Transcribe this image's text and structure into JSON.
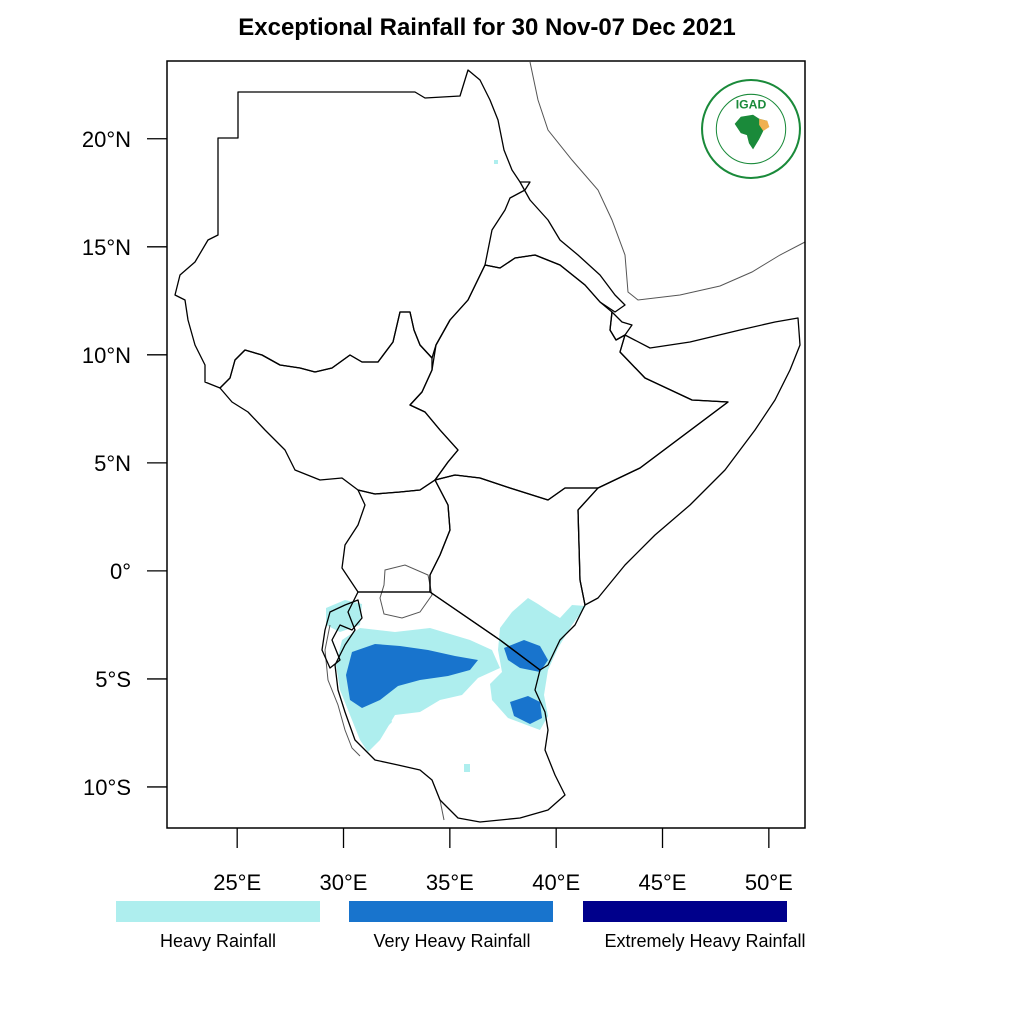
{
  "title": "Exceptional Rainfall for 30 Nov-07 Dec 2021",
  "axes": {
    "lat_ticks": [
      {
        "value": 20,
        "label": "20°N"
      },
      {
        "value": 15,
        "label": "15°N"
      },
      {
        "value": 10,
        "label": "10°N"
      },
      {
        "value": 5,
        "label": "5°N"
      },
      {
        "value": 0,
        "label": "0°"
      },
      {
        "value": -5,
        "label": "5°S"
      },
      {
        "value": -10,
        "label": "10°S"
      }
    ],
    "lon_ticks": [
      {
        "value": 25,
        "label": "25°E"
      },
      {
        "value": 30,
        "label": "30°E"
      },
      {
        "value": 35,
        "label": "35°E"
      },
      {
        "value": 40,
        "label": "40°E"
      },
      {
        "value": 45,
        "label": "45°E"
      },
      {
        "value": 50,
        "label": "50°E"
      }
    ],
    "lon_range": [
      21.7,
      51.7
    ],
    "lat_range": [
      -11.9,
      23.6
    ]
  },
  "legend": [
    {
      "label": "Heavy Rainfall",
      "color": "#aeeeee"
    },
    {
      "label": "Very Heavy Rainfall",
      "color": "#1874cd"
    },
    {
      "label": "Extremely Heavy Rainfall",
      "color": "#00008b"
    }
  ],
  "logo": {
    "text": "IGAD",
    "ring_text": "INTERGOVERNMENTAL AUTHORITY ON DEVELOPMENT · AUTORITÉ INTERGOUVERNEMENTALE POUR LE DÉVELOPPEMENT",
    "color": "#1a8a3a"
  }
}
